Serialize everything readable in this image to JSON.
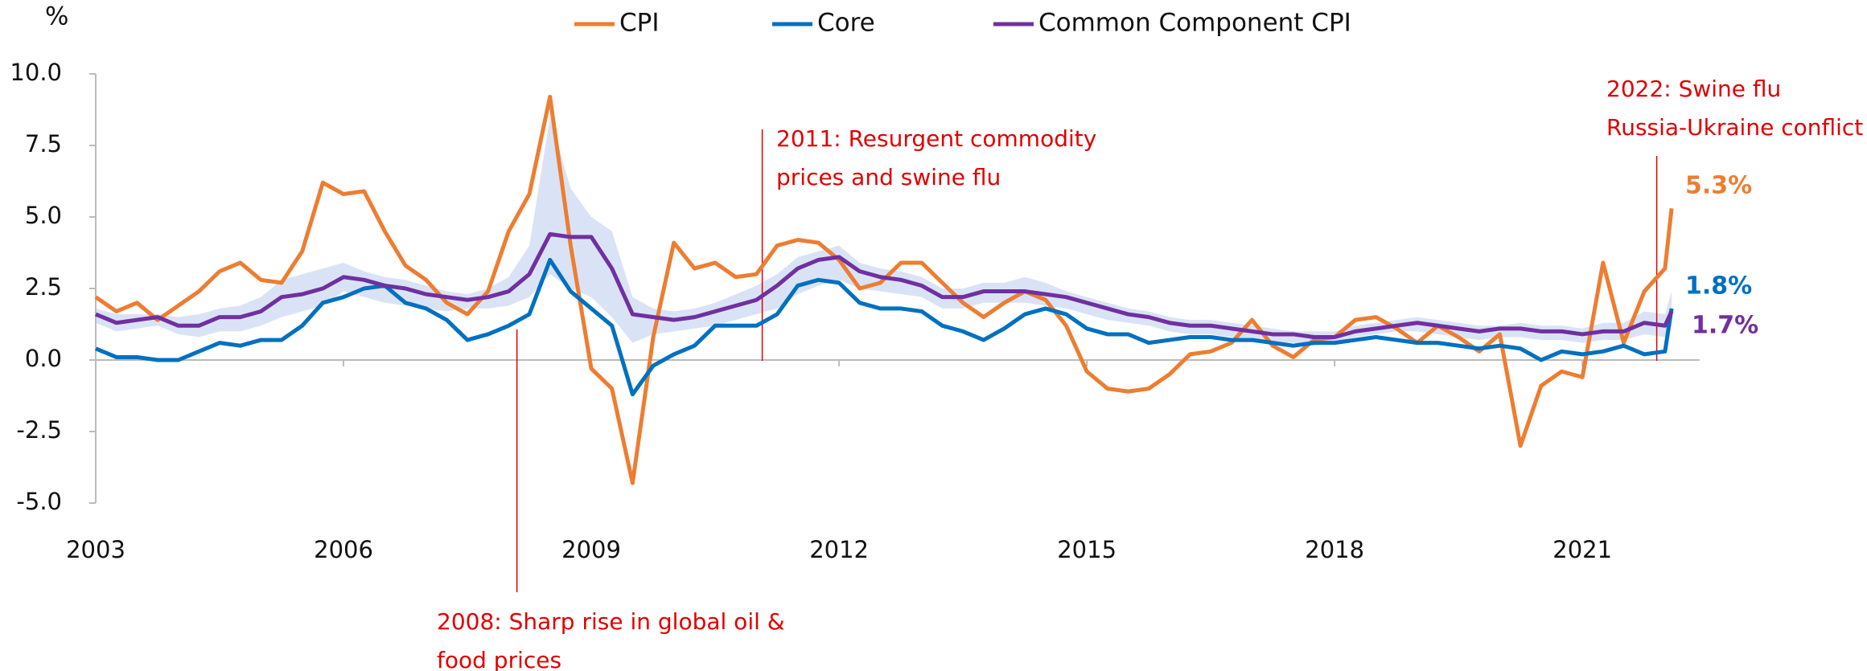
{
  "chart_data": {
    "type": "line",
    "y_label": "%",
    "x": [
      2003,
      2003.25,
      2003.5,
      2003.75,
      2004,
      2004.25,
      2004.5,
      2004.75,
      2005,
      2005.25,
      2005.5,
      2005.75,
      2006,
      2006.25,
      2006.5,
      2006.75,
      2007,
      2007.25,
      2007.5,
      2007.75,
      2008,
      2008.25,
      2008.5,
      2008.75,
      2009,
      2009.25,
      2009.5,
      2009.75,
      2010,
      2010.25,
      2010.5,
      2010.75,
      2011,
      2011.25,
      2011.5,
      2011.75,
      2012,
      2012.25,
      2012.5,
      2012.75,
      2013,
      2013.25,
      2013.5,
      2013.75,
      2014,
      2014.25,
      2014.5,
      2014.75,
      2015,
      2015.25,
      2015.5,
      2015.75,
      2016,
      2016.25,
      2016.5,
      2016.75,
      2017,
      2017.25,
      2017.5,
      2017.75,
      2018,
      2018.25,
      2018.5,
      2018.75,
      2019,
      2019.25,
      2019.5,
      2019.75,
      2020,
      2020.25,
      2020.5,
      2020.75,
      2021,
      2021.25,
      2021.5,
      2021.75,
      2022,
      2022.08
    ],
    "series": [
      {
        "name": "CPI",
        "color": "#ED7D31",
        "values": [
          2.2,
          1.7,
          2.0,
          1.4,
          1.9,
          2.4,
          3.1,
          3.4,
          2.8,
          2.7,
          3.8,
          6.2,
          5.8,
          5.9,
          4.5,
          3.3,
          2.8,
          2.0,
          1.6,
          2.4,
          4.5,
          5.8,
          9.2,
          4.0,
          -0.3,
          -1.0,
          -4.3,
          0.8,
          4.1,
          3.2,
          3.4,
          2.9,
          3.0,
          4.0,
          4.2,
          4.1,
          3.5,
          2.5,
          2.7,
          3.4,
          3.4,
          2.7,
          2.0,
          1.5,
          2.0,
          2.4,
          2.1,
          1.2,
          -0.4,
          -1.0,
          -1.1,
          -1.0,
          -0.5,
          0.2,
          0.3,
          0.6,
          1.4,
          0.5,
          0.1,
          0.7,
          0.8,
          1.4,
          1.5,
          1.1,
          0.6,
          1.2,
          0.8,
          0.3,
          0.9,
          -3.0,
          -0.9,
          -0.4,
          -0.6,
          3.4,
          0.6,
          2.4,
          3.2,
          5.3
        ],
        "value_labels": [
          null,
          null,
          null,
          null,
          null,
          null,
          null,
          null,
          null,
          null,
          null,
          null,
          null,
          null,
          null,
          null,
          null,
          null,
          null,
          null,
          null,
          null,
          null,
          null,
          null,
          null,
          null,
          null,
          null,
          null,
          null,
          null,
          null,
          null,
          null,
          null,
          null,
          null,
          null,
          null,
          null,
          null,
          null,
          null,
          null,
          null,
          null,
          null,
          null,
          null,
          null,
          null,
          null,
          null,
          null,
          null,
          null,
          null,
          null,
          null,
          null,
          null,
          null,
          null,
          null,
          null,
          null,
          null,
          null,
          null,
          null,
          null,
          null,
          null,
          null,
          null,
          null,
          "5.3%"
        ]
      },
      {
        "name": "Core",
        "color": "#0070C0",
        "values": [
          0.4,
          0.1,
          0.1,
          0.0,
          0.0,
          0.3,
          0.6,
          0.5,
          0.7,
          0.7,
          1.2,
          2.0,
          2.2,
          2.5,
          2.6,
          2.0,
          1.8,
          1.4,
          0.7,
          0.9,
          1.2,
          1.6,
          3.5,
          2.4,
          1.8,
          1.2,
          -1.2,
          -0.2,
          0.2,
          0.5,
          1.2,
          1.2,
          1.2,
          1.6,
          2.6,
          2.8,
          2.7,
          2.0,
          1.8,
          1.8,
          1.7,
          1.2,
          1.0,
          0.7,
          1.1,
          1.6,
          1.8,
          1.6,
          1.1,
          0.9,
          0.9,
          0.6,
          0.7,
          0.8,
          0.8,
          0.7,
          0.7,
          0.6,
          0.5,
          0.6,
          0.6,
          0.7,
          0.8,
          0.7,
          0.6,
          0.6,
          0.5,
          0.4,
          0.5,
          0.4,
          0.0,
          0.3,
          0.2,
          0.3,
          0.5,
          0.2,
          0.3,
          1.8
        ],
        "value_labels": [
          null,
          null,
          null,
          null,
          null,
          null,
          null,
          null,
          null,
          null,
          null,
          null,
          null,
          null,
          null,
          null,
          null,
          null,
          null,
          null,
          null,
          null,
          null,
          null,
          null,
          null,
          null,
          null,
          null,
          null,
          null,
          null,
          null,
          null,
          null,
          null,
          null,
          null,
          null,
          null,
          null,
          null,
          null,
          null,
          null,
          null,
          null,
          null,
          null,
          null,
          null,
          null,
          null,
          null,
          null,
          null,
          null,
          null,
          null,
          null,
          null,
          null,
          null,
          null,
          null,
          null,
          null,
          null,
          null,
          null,
          null,
          null,
          null,
          null,
          null,
          null,
          null,
          "1.8%"
        ]
      },
      {
        "name": "Common Component CPI",
        "color": "#7030A0",
        "values": [
          1.6,
          1.3,
          1.4,
          1.5,
          1.2,
          1.2,
          1.5,
          1.5,
          1.7,
          2.2,
          2.3,
          2.5,
          2.9,
          2.8,
          2.6,
          2.5,
          2.3,
          2.2,
          2.1,
          2.2,
          2.4,
          3.0,
          4.4,
          4.3,
          4.3,
          3.2,
          1.6,
          1.5,
          1.4,
          1.5,
          1.7,
          1.9,
          2.1,
          2.6,
          3.2,
          3.5,
          3.6,
          3.1,
          2.9,
          2.8,
          2.6,
          2.2,
          2.2,
          2.4,
          2.4,
          2.4,
          2.3,
          2.2,
          2.0,
          1.8,
          1.6,
          1.5,
          1.3,
          1.2,
          1.2,
          1.1,
          1.0,
          0.9,
          0.9,
          0.8,
          0.8,
          1.0,
          1.1,
          1.2,
          1.3,
          1.2,
          1.1,
          1.0,
          1.1,
          1.1,
          1.0,
          1.0,
          0.9,
          1.0,
          1.0,
          1.3,
          1.2,
          1.7
        ],
        "value_labels": [
          null,
          null,
          null,
          null,
          null,
          null,
          null,
          null,
          null,
          null,
          null,
          null,
          null,
          null,
          null,
          null,
          null,
          null,
          null,
          null,
          null,
          null,
          null,
          null,
          null,
          null,
          null,
          null,
          null,
          null,
          null,
          null,
          null,
          null,
          null,
          null,
          null,
          null,
          null,
          null,
          null,
          null,
          null,
          null,
          null,
          null,
          null,
          null,
          null,
          null,
          null,
          null,
          null,
          null,
          null,
          null,
          null,
          null,
          null,
          null,
          null,
          null,
          null,
          null,
          null,
          null,
          null,
          null,
          null,
          null,
          null,
          null,
          null,
          null,
          null,
          null,
          null,
          "1.7%"
        ]
      }
    ],
    "band": {
      "color": "#DAE3F5",
      "upper": [
        1.8,
        1.6,
        1.6,
        1.6,
        1.5,
        1.6,
        1.8,
        1.9,
        2.2,
        2.8,
        3.0,
        3.2,
        3.4,
        3.1,
        2.9,
        2.8,
        2.6,
        2.4,
        2.3,
        2.5,
        2.9,
        4.0,
        8.5,
        6.0,
        5.0,
        4.5,
        2.2,
        1.8,
        1.7,
        1.8,
        2.0,
        2.3,
        2.6,
        3.0,
        3.6,
        3.8,
        4.0,
        3.4,
        3.2,
        3.1,
        2.9,
        2.5,
        2.5,
        2.7,
        2.7,
        2.9,
        2.7,
        2.4,
        2.2,
        2.0,
        1.8,
        1.7,
        1.5,
        1.4,
        1.4,
        1.3,
        1.2,
        1.1,
        1.0,
        1.0,
        1.0,
        1.2,
        1.3,
        1.4,
        1.5,
        1.4,
        1.3,
        1.2,
        1.2,
        1.3,
        1.2,
        1.2,
        1.1,
        1.3,
        1.3,
        1.7,
        1.6,
        2.4
      ],
      "lower": [
        1.3,
        1.0,
        1.1,
        1.2,
        0.9,
        0.8,
        1.0,
        1.0,
        1.2,
        1.5,
        1.7,
        1.9,
        2.4,
        2.2,
        2.0,
        1.9,
        1.8,
        1.7,
        1.8,
        1.8,
        1.9,
        2.2,
        3.0,
        2.5,
        2.2,
        1.5,
        0.6,
        0.9,
        1.0,
        1.1,
        1.2,
        1.4,
        1.6,
        1.8,
        2.3,
        2.6,
        2.8,
        2.5,
        2.4,
        2.3,
        2.2,
        1.8,
        1.8,
        2.0,
        2.0,
        2.0,
        1.9,
        1.8,
        1.6,
        1.4,
        1.3,
        1.2,
        1.0,
        0.9,
        0.9,
        0.8,
        0.7,
        0.6,
        0.6,
        0.5,
        0.6,
        0.8,
        0.9,
        1.0,
        1.0,
        0.9,
        0.8,
        0.7,
        0.8,
        0.8,
        0.7,
        0.7,
        0.6,
        0.7,
        0.7,
        0.9,
        0.8,
        1.2
      ]
    },
    "xlim": [
      2003,
      2022.42
    ],
    "xticks": [
      2003,
      2006,
      2009,
      2012,
      2015,
      2018,
      2021
    ],
    "ylim": [
      -5,
      10
    ],
    "yticks": [
      {
        "value": 10,
        "label": "10.0"
      },
      {
        "value": 7.5,
        "label": "7.5"
      },
      {
        "value": 5,
        "label": "5.0"
      },
      {
        "value": 2.5,
        "label": "2.5"
      },
      {
        "value": 0,
        "label": "0.0"
      },
      {
        "value": -2.5,
        "label": "-2.5"
      },
      {
        "value": -5,
        "label": "-5.0"
      }
    ],
    "annotations": [
      {
        "x": 2008.1,
        "lines": [
          "2008: Sharp rise in global oil &",
          "food prices"
        ]
      },
      {
        "x": 2011.07,
        "lines": [
          "2011: Resurgent commodity",
          "prices and swine flu"
        ]
      },
      {
        "x": 2021.9,
        "lines": [
          "2022: Swine flu",
          "Russia-Ukraine conflict"
        ]
      }
    ],
    "legend": "top"
  }
}
